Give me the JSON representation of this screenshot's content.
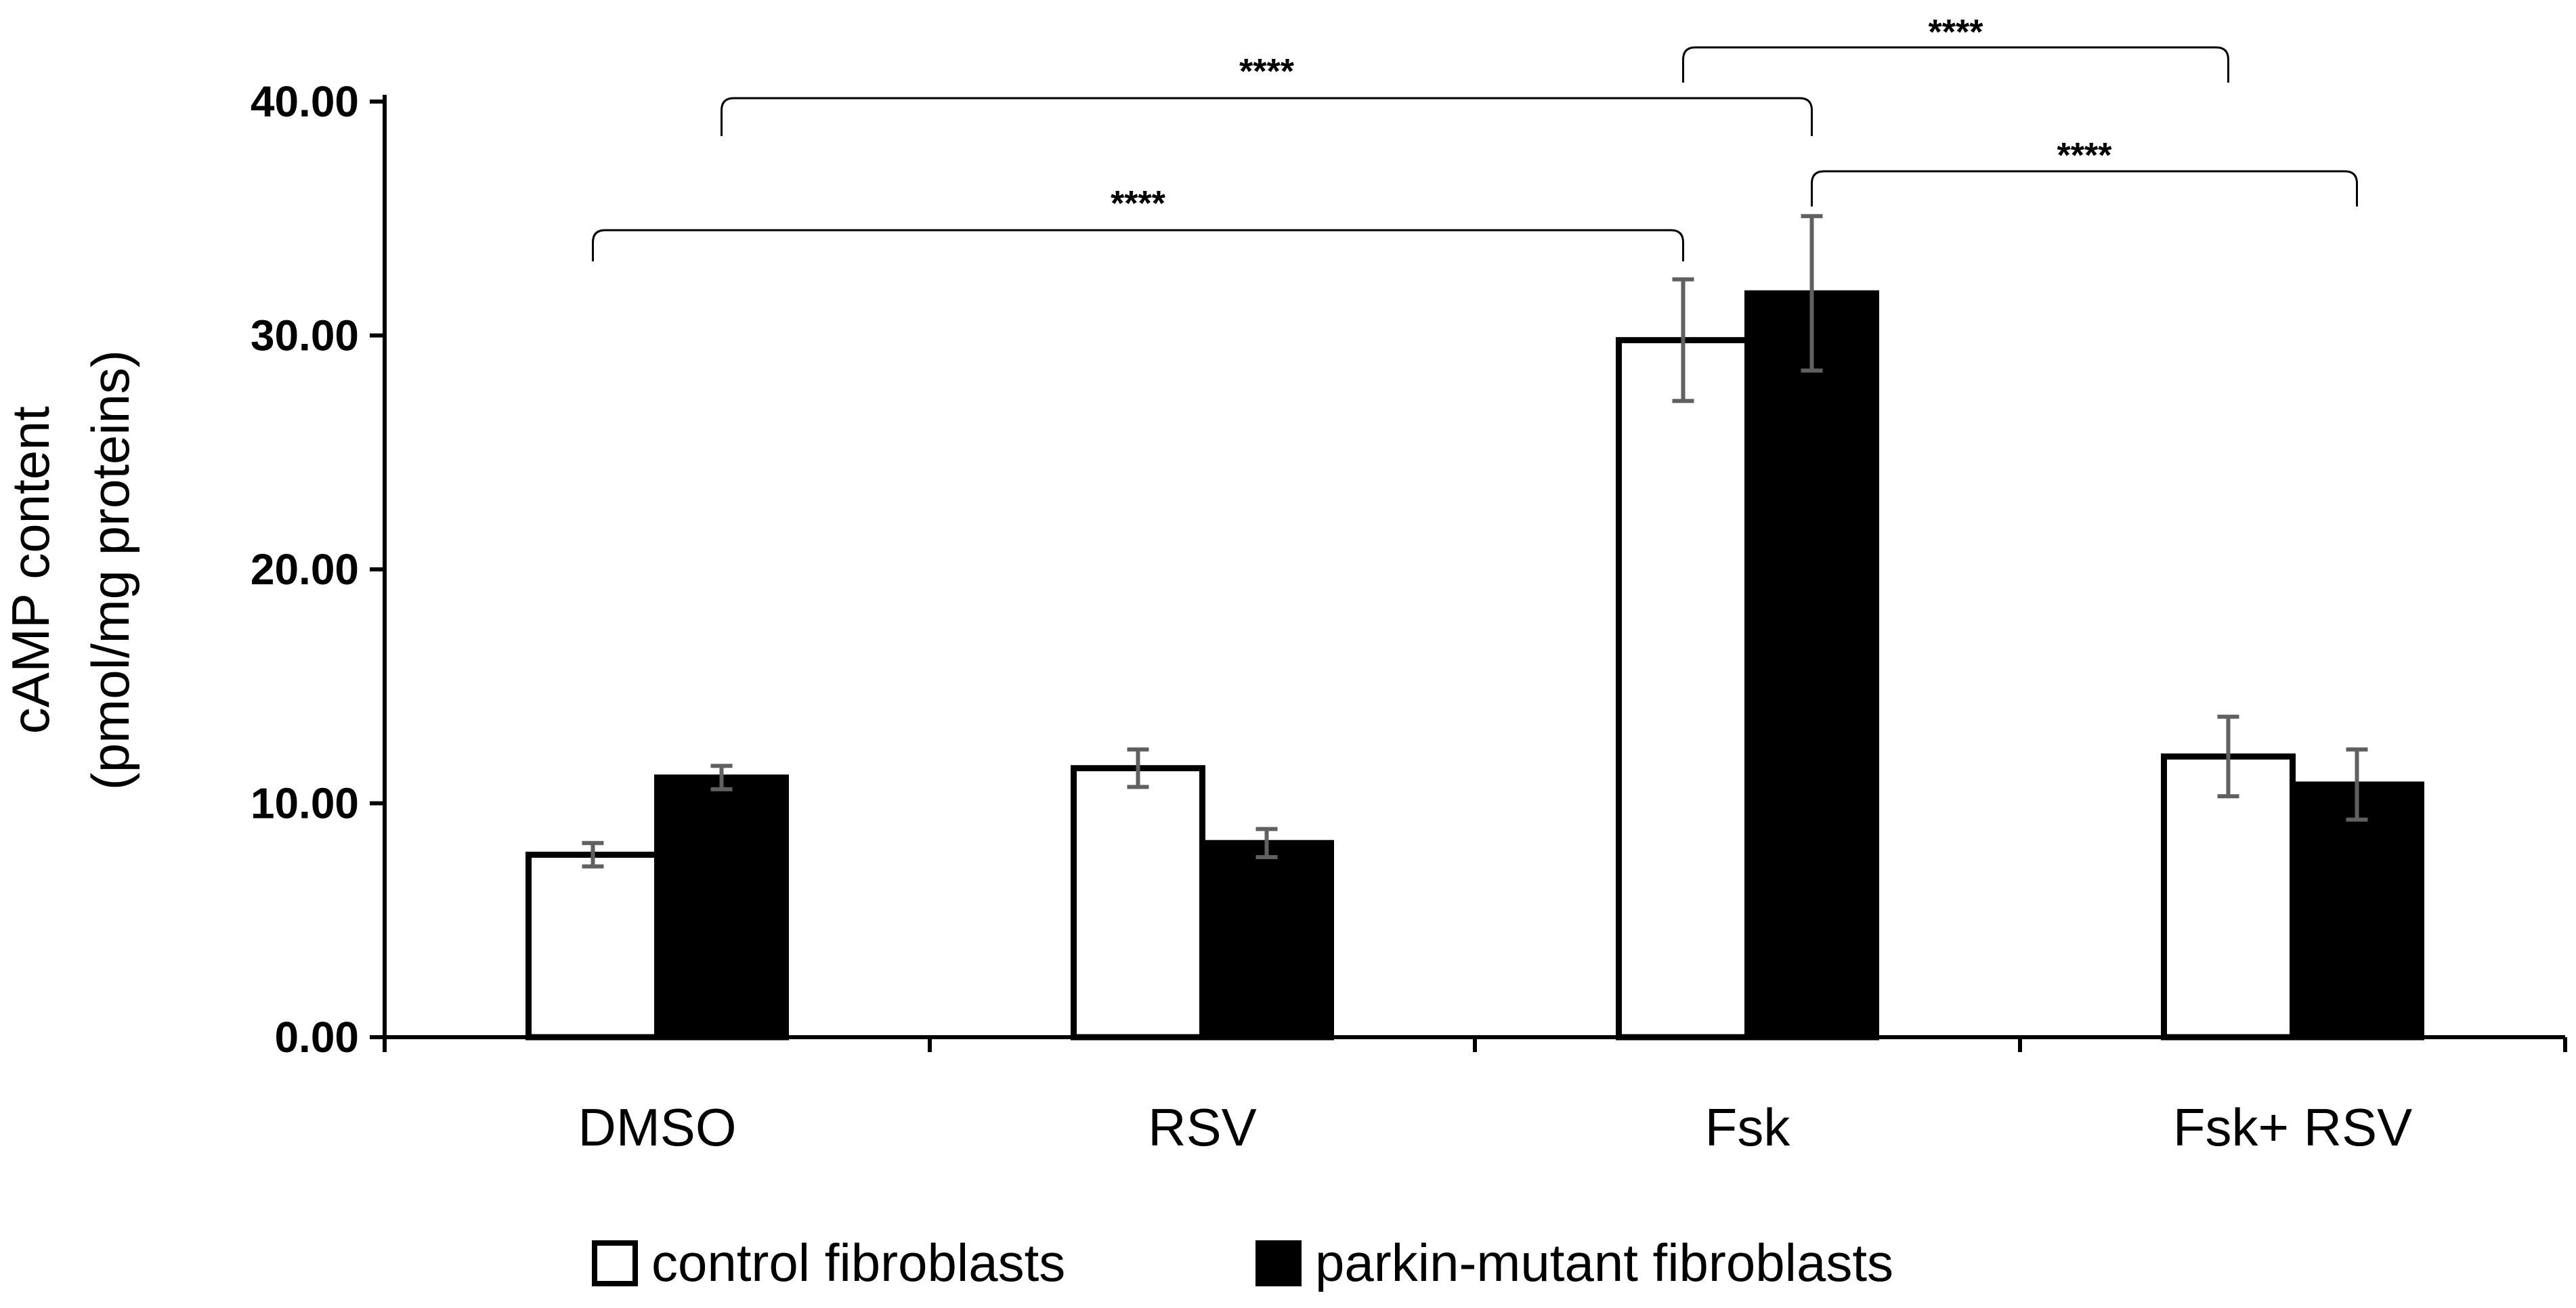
{
  "chart_data": {
    "type": "bar",
    "title": "",
    "xlabel": "",
    "ylabel": [
      "cAMP content",
      "(pmol/mg proteins)"
    ],
    "ylim": [
      0,
      40
    ],
    "yticks": [
      "0.00",
      "10.00",
      "20.00",
      "30.00",
      "40.00"
    ],
    "categories": [
      "DMSO",
      "RSV",
      "Fsk",
      "Fsk+ RSV"
    ],
    "series": [
      {
        "name": "control fibroblasts",
        "color": "#ffffff",
        "values": [
          7.8,
          11.5,
          29.8,
          12.0
        ],
        "errors": [
          0.5,
          0.8,
          2.6,
          1.7
        ]
      },
      {
        "name": "parkin-mutant fibroblasts",
        "color": "#000000",
        "values": [
          11.1,
          8.3,
          31.8,
          10.8
        ],
        "errors": [
          0.5,
          0.6,
          3.3,
          1.5
        ]
      }
    ],
    "significance": [
      {
        "from": [
          0,
          0
        ],
        "to": [
          2,
          0
        ],
        "label": "****"
      },
      {
        "from": [
          0,
          1
        ],
        "to": [
          2,
          1
        ],
        "label": "****"
      },
      {
        "from": [
          2,
          0
        ],
        "to": [
          3,
          0
        ],
        "label": "****"
      },
      {
        "from": [
          2,
          1
        ],
        "to": [
          3,
          1
        ],
        "label": "****"
      }
    ],
    "legend_position": "bottom"
  }
}
